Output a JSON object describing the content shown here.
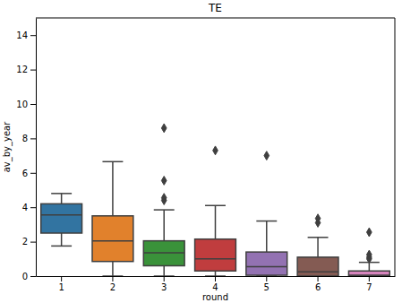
{
  "chart_data": {
    "type": "box",
    "title": "TE",
    "x_label": "round",
    "y_label": "av_by_year",
    "categories": [
      "1",
      "2",
      "3",
      "4",
      "5",
      "6",
      "7"
    ],
    "colors": [
      "#3274a1",
      "#e1812c",
      "#3a923a",
      "#c03d3e",
      "#9372b2",
      "#845b53",
      "#d684bd"
    ],
    "boxes": [
      {
        "min": 1.75,
        "q1": 2.5,
        "median": 3.55,
        "q3": 4.2,
        "max": 4.8,
        "outliers": []
      },
      {
        "min": 0,
        "q1": 0.85,
        "median": 2.05,
        "q3": 3.5,
        "max": 6.65,
        "outliers": []
      },
      {
        "min": 0,
        "q1": 0.6,
        "median": 1.35,
        "q3": 2.05,
        "max": 3.85,
        "outliers": [
          4.4,
          4.55,
          5.55,
          8.6
        ]
      },
      {
        "min": 0,
        "q1": 0.3,
        "median": 1.0,
        "q3": 2.15,
        "max": 4.1,
        "outliers": [
          7.3
        ]
      },
      {
        "min": 0,
        "q1": 0.05,
        "median": 0.55,
        "q3": 1.4,
        "max": 3.2,
        "outliers": [
          7.0
        ]
      },
      {
        "min": 0,
        "q1": 0,
        "median": 0.25,
        "q3": 1.1,
        "max": 2.25,
        "outliers": [
          3.1,
          3.35
        ]
      },
      {
        "min": 0,
        "q1": 0,
        "median": 0.05,
        "q3": 0.3,
        "max": 0.8,
        "outliers": [
          1.0,
          1.1,
          1.25,
          2.55
        ]
      }
    ],
    "ylim": [
      0,
      15
    ],
    "yticks": [
      0,
      2,
      4,
      6,
      8,
      10,
      12,
      14
    ],
    "grid": false
  }
}
